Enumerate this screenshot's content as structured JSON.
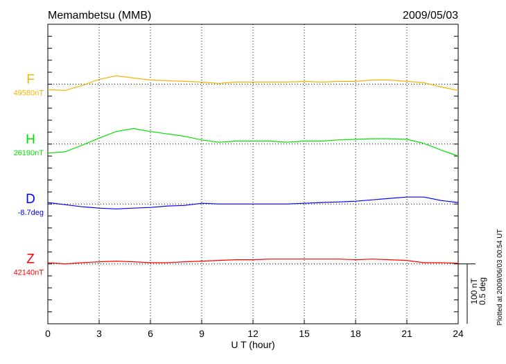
{
  "chart_data": {
    "type": "line",
    "title": "Memambetsu (MMB)",
    "date": "2009/05/03",
    "xlabel": "U T (hour)",
    "xlim": [
      0,
      24
    ],
    "xticks": [
      "0",
      "3",
      "6",
      "9",
      "12",
      "15",
      "18",
      "21",
      "24"
    ],
    "grid": true,
    "scale_bar": {
      "nT": "100 nT",
      "deg": "0.5 deg",
      "nT_value": 100,
      "deg_value": 0.5
    },
    "footer": "Plotted at 2009/06/03 00:54 UT",
    "x": [
      0,
      1,
      2,
      3,
      4,
      5,
      6,
      7,
      8,
      9,
      10,
      11,
      12,
      13,
      14,
      15,
      16,
      17,
      18,
      19,
      20,
      21,
      22,
      23,
      24
    ],
    "series": [
      {
        "name": "F",
        "baseline_label": "49580nT",
        "color": "#f5b400",
        "unit": "nT",
        "values": [
          -9.3,
          -10.5,
          -2.3,
          8.1,
          14,
          10.5,
          7,
          5.8,
          4.7,
          3.5,
          1.2,
          3.5,
          3.5,
          3.5,
          3.5,
          4.7,
          3.5,
          4.7,
          4.7,
          7,
          7,
          4.7,
          2.3,
          -4.7,
          -10.5
        ]
      },
      {
        "name": "H",
        "baseline_label": "26190nT",
        "color": "#00e000",
        "unit": "nT",
        "values": [
          -15,
          -13,
          -2,
          10,
          21,
          26,
          21,
          17,
          13,
          7,
          3,
          5,
          5,
          5,
          3,
          5,
          5,
          7,
          8,
          9,
          9,
          8,
          1,
          -10,
          -20
        ]
      },
      {
        "name": "D",
        "baseline_label": "-8.7deg",
        "color": "#0000ff",
        "unit": "deg",
        "values": [
          0.012,
          -0.006,
          -0.023,
          -0.035,
          -0.041,
          -0.035,
          -0.029,
          -0.017,
          -0.012,
          0.006,
          0,
          0,
          0,
          0,
          0,
          0.006,
          0.012,
          0.017,
          0.023,
          0.035,
          0.047,
          0.058,
          0.058,
          0.029,
          0.012
        ]
      },
      {
        "name": "Z",
        "baseline_label": "42140nT",
        "color": "#ff0000",
        "unit": "nT",
        "values": [
          2,
          0,
          2,
          3.5,
          4.7,
          3.5,
          2,
          2,
          3.5,
          4.7,
          5.8,
          7,
          7,
          8,
          8,
          8,
          8,
          8,
          7,
          8,
          7,
          5.8,
          2,
          2,
          1
        ]
      }
    ]
  }
}
